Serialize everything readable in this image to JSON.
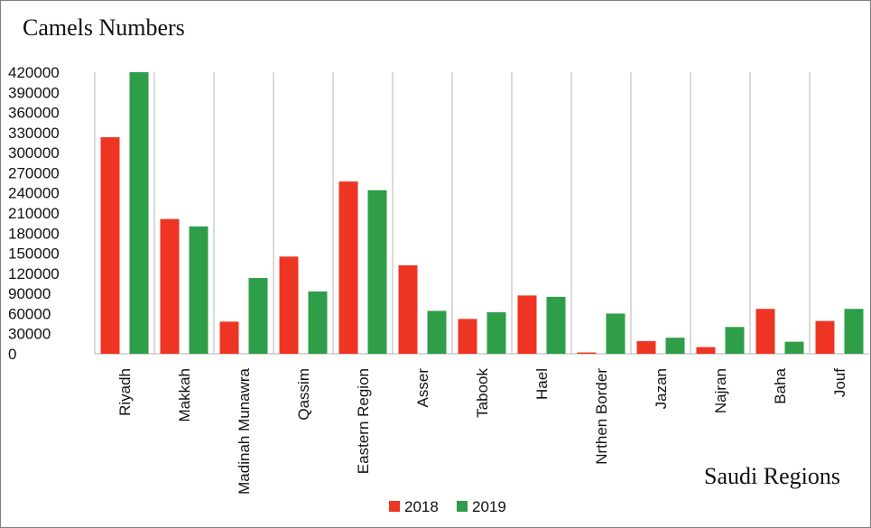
{
  "chart_data": {
    "type": "bar",
    "title": "Camels Numbers",
    "xlabel": "Saudi Regions",
    "ylabel": "",
    "ylim": [
      0,
      420000
    ],
    "yticks": [
      0,
      30000,
      60000,
      90000,
      120000,
      150000,
      180000,
      210000,
      240000,
      270000,
      300000,
      330000,
      360000,
      390000,
      420000
    ],
    "grid": "vertical category separators",
    "legend_position": "bottom",
    "categories": [
      "Riyadh",
      "Makkah",
      "Madinah Munawra",
      "Qassim",
      "Eastern Region",
      "Asser",
      "Tabook",
      "Hael",
      "Nrthen Border",
      "Jazan",
      "Najran",
      "Baha",
      "Jouf"
    ],
    "series": [
      {
        "name": "2018",
        "color": "#ee3524",
        "values": [
          323000,
          201000,
          48000,
          145000,
          257000,
          132000,
          52000,
          87000,
          2000,
          19000,
          10000,
          67000,
          49000
        ]
      },
      {
        "name": "2019",
        "color": "#2e9e48",
        "values": [
          420000,
          190000,
          113000,
          93000,
          244000,
          64000,
          62000,
          85000,
          60000,
          24000,
          40000,
          18000,
          67000
        ]
      }
    ]
  }
}
